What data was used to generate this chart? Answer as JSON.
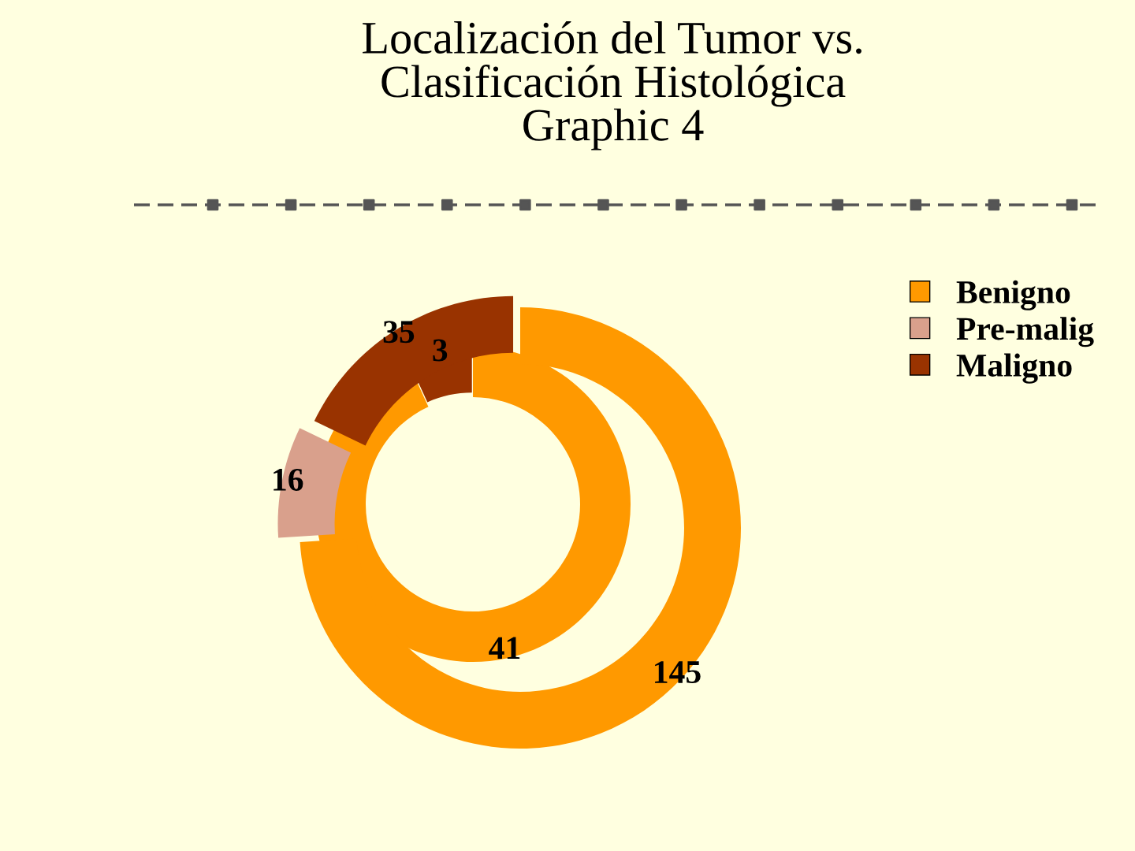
{
  "chart_data": {
    "type": "donut",
    "title": "Localización del Tumor vs.\nClasificación Histológica\nGraphic 4",
    "categories": [
      "Benigno",
      "Pre-malig",
      "Maligno"
    ],
    "colors": [
      "#ff9900",
      "#d9a08c",
      "#993300"
    ],
    "series": [
      {
        "values": [
          41,
          0,
          3
        ],
        "value_labels": [
          "41",
          null,
          "3"
        ]
      },
      {
        "values": [
          145,
          16,
          35
        ],
        "value_labels": [
          "145",
          "16",
          "35"
        ]
      }
    ],
    "legend": "right"
  }
}
